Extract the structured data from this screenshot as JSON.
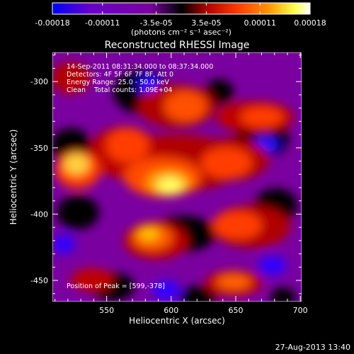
{
  "colorbar": {
    "tick_labels": [
      "-0.00018",
      "-0.00011",
      "-3.5e-05",
      "3.5e-05",
      "0.00011",
      "0.00018"
    ],
    "tick_values": [
      -0.00018,
      -0.00011,
      -3.5e-05,
      3.5e-05,
      0.00011,
      0.00018
    ],
    "range": [
      -0.00018,
      0.00018
    ],
    "unit_label": "(photons cm⁻² s⁻¹ asec⁻²)",
    "colors": [
      "#0000ff",
      "#6a00c8",
      "#7a00a0",
      "#000000",
      "#b00000",
      "#ff3c00",
      "#ff9600",
      "#ffff50",
      "#ffffff"
    ]
  },
  "image": {
    "title": "Reconstructed RHESSI Image",
    "xlabel": "Heliocentric X (arcsec)",
    "ylabel": "Heliocentric Y (arcsec)",
    "x_ticks": [
      "550",
      "600",
      "650",
      "700"
    ],
    "x_tick_values": [
      550,
      600,
      650,
      700
    ],
    "y_ticks": [
      "-300",
      "-350",
      "-400",
      "-450"
    ],
    "y_tick_values": [
      -300,
      -350,
      -400,
      -450
    ],
    "xlim": [
      508,
      701
    ],
    "ylim": [
      -466,
      -278
    ],
    "info_lines": [
      "14-Sep-2011 08:31:34.000 to 08:37:34.000",
      "Detectors: 4F 5F 6F 7F 8F, Att 0",
      "Energy Range: 25.0 - 50.0 keV",
      "Clean    Total counts: 1.09E+04"
    ],
    "peak_text": "Position of Peak = [599,-378]"
  },
  "footer": {
    "timestamp": "27-Aug-2013 13:40"
  }
}
